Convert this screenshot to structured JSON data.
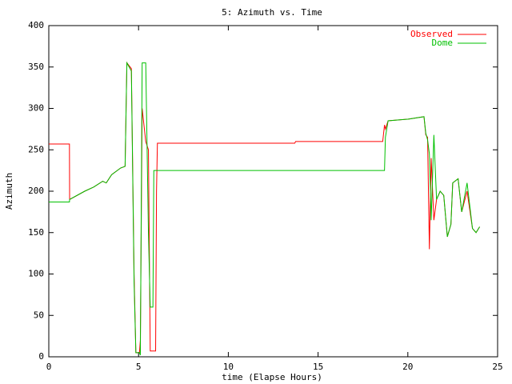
{
  "chart_data": {
    "type": "line",
    "title": "5: Azimuth vs. Time",
    "xlabel": "time (Elapse Hours)",
    "ylabel": "Azimuth",
    "legend": "upper right",
    "x": [
      0,
      1.15,
      1.16,
      2.0,
      2.5,
      3.0,
      3.2,
      3.5,
      4.0,
      4.25,
      4.35,
      4.6,
      4.75,
      4.85,
      5.05,
      5.1,
      5.2,
      5.4,
      5.55,
      5.65,
      5.8,
      5.85,
      5.95,
      6.0,
      6.05,
      13.7,
      13.75,
      18.6,
      18.7,
      18.75,
      18.9,
      20.0,
      20.9,
      21.0,
      21.1,
      21.2,
      21.3,
      21.45,
      21.6,
      21.8,
      22.0,
      22.2,
      22.4,
      22.5,
      22.8,
      23.0,
      23.3,
      23.6,
      23.8,
      24.0
    ],
    "series": [
      {
        "name": "Observed",
        "color": "#ff0000",
        "values": [
          257,
          257,
          190,
          200,
          205,
          212,
          210,
          220,
          228,
          230,
          355,
          348,
          100,
          5,
          5,
          20,
          300,
          260,
          250,
          7,
          7,
          7,
          7,
          200,
          258,
          258,
          260,
          260,
          280,
          275,
          285,
          287,
          290,
          268,
          265,
          130,
          240,
          165,
          190,
          200,
          195,
          145,
          160,
          210,
          215,
          175,
          200,
          155,
          150,
          157
        ]
      },
      {
        "name": "Dome",
        "color": "#00c000",
        "values": [
          187,
          187,
          190,
          200,
          205,
          212,
          210,
          220,
          228,
          230,
          355,
          345,
          90,
          5,
          5,
          2,
          355,
          355,
          150,
          60,
          60,
          225,
          225,
          225,
          225,
          225,
          225,
          225,
          225,
          265,
          285,
          287,
          290,
          270,
          262,
          245,
          165,
          268,
          190,
          200,
          195,
          145,
          160,
          210,
          215,
          175,
          210,
          155,
          150,
          157
        ]
      }
    ],
    "xlim": [
      0,
      25
    ],
    "xticks": [
      0,
      5,
      10,
      15,
      20,
      25
    ],
    "ylim": [
      0,
      400
    ],
    "yticks": [
      0,
      50,
      100,
      150,
      200,
      250,
      300,
      350,
      400
    ],
    "grid": false
  }
}
